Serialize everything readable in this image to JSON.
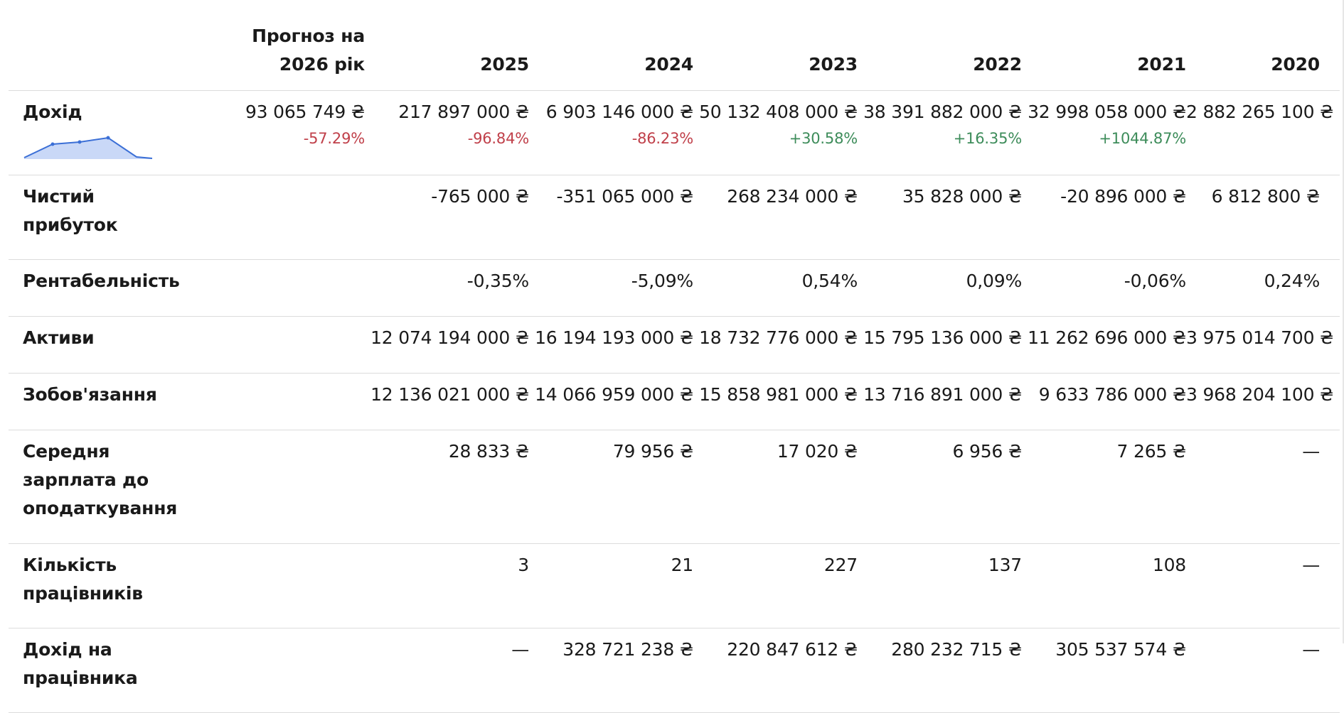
{
  "header": {
    "forecast": [
      "Прогноз на",
      "2026 рік"
    ],
    "years": [
      "2025",
      "2024",
      "2023",
      "2022",
      "2021",
      "2020"
    ]
  },
  "rows": [
    {
      "label": [
        "Дохід"
      ],
      "forecast": "93 065 749 ₴",
      "forecast_change": "-57.29%",
      "values": [
        "217 897 000 ₴",
        "6 903 146 000 ₴",
        "50 132 408 000 ₴",
        "38 391 882 000 ₴",
        "32 998 058 000 ₴",
        "2 882 265 100 ₴"
      ],
      "changes": [
        "-96.84%",
        "-86.23%",
        "+30.58%",
        "+16.35%",
        "+1044.87%",
        ""
      ]
    },
    {
      "label": [
        "Чистий",
        "прибуток"
      ],
      "values": [
        "-765 000 ₴",
        "-351 065 000 ₴",
        "268 234 000 ₴",
        "35 828 000 ₴",
        "-20 896 000 ₴",
        "6 812 800 ₴"
      ]
    },
    {
      "label": [
        "Рентабельність"
      ],
      "values": [
        "-0,35%",
        "-5,09%",
        "0,54%",
        "0,09%",
        "-0,06%",
        "0,24%"
      ]
    },
    {
      "label": [
        "Активи"
      ],
      "values": [
        "12 074 194 000 ₴",
        "16 194 193 000 ₴",
        "18 732 776 000 ₴",
        "15 795 136 000 ₴",
        "11 262 696 000 ₴",
        "3 975 014 700 ₴"
      ]
    },
    {
      "label": [
        "Зобов'язання"
      ],
      "values": [
        "12 136 021 000 ₴",
        "14 066 959 000 ₴",
        "15 858 981 000 ₴",
        "13 716 891 000 ₴",
        "9 633 786 000 ₴",
        "3 968 204 100 ₴"
      ]
    },
    {
      "label": [
        "Середня",
        "зарплата до",
        "оподаткування"
      ],
      "values": [
        "28 833 ₴",
        "79 956 ₴",
        "17 020 ₴",
        "6 956 ₴",
        "7 265 ₴",
        "—"
      ]
    },
    {
      "label": [
        "Кількість",
        "працівників"
      ],
      "values": [
        "3",
        "21",
        "227",
        "137",
        "108",
        "—"
      ]
    },
    {
      "label": [
        "Дохід на",
        "працівника"
      ],
      "values": [
        "—",
        "328 721 238 ₴",
        "220 847 612 ₴",
        "280 232 715 ₴",
        "305 537 574 ₴",
        "—"
      ]
    }
  ],
  "colors": {
    "negative": "#c0404a",
    "positive": "#3d8c5a",
    "spark_line": "#3b6fd6",
    "spark_fill": "#c9d8f7"
  }
}
